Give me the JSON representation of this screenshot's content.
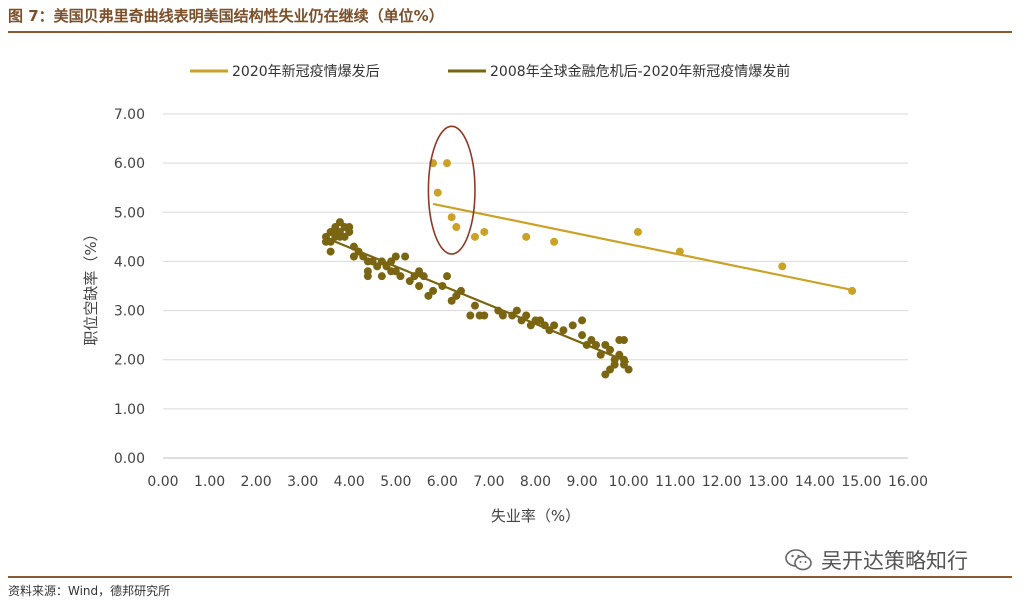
{
  "figure": {
    "title": "图 7：美国贝弗里奇曲线表明美国结构性失业仍在继续（单位%）",
    "source": "资料来源：Wind，德邦研究所",
    "watermark": "吴开达策略知行",
    "watermark_icon": "wechat-icon"
  },
  "chart_data": {
    "type": "scatter",
    "xlabel": "失业率（%）",
    "ylabel": "职位空缺率（%）",
    "xlim": [
      0,
      16
    ],
    "ylim": [
      0,
      7
    ],
    "x_ticks": [
      "0.00",
      "1.00",
      "2.00",
      "3.00",
      "4.00",
      "5.00",
      "6.00",
      "7.00",
      "8.00",
      "9.00",
      "10.00",
      "11.00",
      "12.00",
      "13.00",
      "14.00",
      "15.00",
      "16.00"
    ],
    "y_ticks": [
      "0.00",
      "1.00",
      "2.00",
      "3.00",
      "4.00",
      "5.00",
      "6.00",
      "7.00"
    ],
    "grid": "horizontal",
    "legend_position": "top",
    "annotation": {
      "type": "ellipse",
      "center": [
        6.2,
        5.45
      ],
      "rx": 0.5,
      "ry": 1.3,
      "color": "#8b3a2a"
    },
    "series": [
      {
        "name": "2020年新冠疫情爆发后",
        "color": "#c9a227",
        "points": [
          [
            5.8,
            6.0
          ],
          [
            6.1,
            6.0
          ],
          [
            5.9,
            5.4
          ],
          [
            6.2,
            4.9
          ],
          [
            6.3,
            4.7
          ],
          [
            6.7,
            4.5
          ],
          [
            6.9,
            4.6
          ],
          [
            7.8,
            4.5
          ],
          [
            8.4,
            4.4
          ],
          [
            10.2,
            4.6
          ],
          [
            11.1,
            4.2
          ],
          [
            13.3,
            3.9
          ],
          [
            14.8,
            3.4
          ]
        ],
        "trendline": [
          [
            5.8,
            5.17
          ],
          [
            14.8,
            3.42
          ]
        ]
      },
      {
        "name": "2008年全球金融危机后-2020年新冠疫情爆发前",
        "color": "#7a6512",
        "points": [
          [
            3.5,
            4.5
          ],
          [
            3.5,
            4.4
          ],
          [
            3.6,
            4.6
          ],
          [
            3.6,
            4.4
          ],
          [
            3.6,
            4.2
          ],
          [
            3.7,
            4.7
          ],
          [
            3.7,
            4.5
          ],
          [
            3.7,
            4.6
          ],
          [
            3.8,
            4.8
          ],
          [
            3.8,
            4.6
          ],
          [
            3.8,
            4.5
          ],
          [
            3.9,
            4.7
          ],
          [
            3.9,
            4.5
          ],
          [
            4.0,
            4.6
          ],
          [
            4.0,
            4.7
          ],
          [
            4.1,
            4.3
          ],
          [
            4.1,
            4.1
          ],
          [
            4.2,
            4.2
          ],
          [
            4.3,
            4.1
          ],
          [
            4.4,
            4.0
          ],
          [
            4.4,
            3.8
          ],
          [
            4.4,
            3.7
          ],
          [
            4.5,
            4.0
          ],
          [
            4.6,
            3.9
          ],
          [
            4.7,
            4.0
          ],
          [
            4.7,
            3.7
          ],
          [
            4.8,
            3.9
          ],
          [
            4.9,
            3.8
          ],
          [
            4.9,
            4.0
          ],
          [
            5.0,
            3.8
          ],
          [
            5.0,
            4.1
          ],
          [
            5.1,
            3.7
          ],
          [
            5.2,
            4.1
          ],
          [
            5.3,
            3.6
          ],
          [
            5.4,
            3.7
          ],
          [
            5.5,
            3.8
          ],
          [
            5.5,
            3.5
          ],
          [
            5.6,
            3.7
          ],
          [
            5.7,
            3.3
          ],
          [
            5.8,
            3.4
          ],
          [
            6.0,
            3.5
          ],
          [
            6.1,
            3.7
          ],
          [
            6.2,
            3.2
          ],
          [
            6.3,
            3.3
          ],
          [
            6.4,
            3.4
          ],
          [
            6.6,
            2.9
          ],
          [
            6.7,
            3.1
          ],
          [
            6.8,
            2.9
          ],
          [
            6.9,
            2.9
          ],
          [
            7.2,
            3.0
          ],
          [
            7.3,
            2.9
          ],
          [
            7.5,
            2.9
          ],
          [
            7.6,
            3.0
          ],
          [
            7.7,
            2.8
          ],
          [
            7.8,
            2.9
          ],
          [
            7.9,
            2.7
          ],
          [
            8.0,
            2.8
          ],
          [
            8.1,
            2.8
          ],
          [
            8.2,
            2.7
          ],
          [
            8.3,
            2.6
          ],
          [
            8.4,
            2.7
          ],
          [
            8.6,
            2.6
          ],
          [
            8.8,
            2.7
          ],
          [
            9.0,
            2.8
          ],
          [
            9.0,
            2.5
          ],
          [
            9.1,
            2.3
          ],
          [
            9.2,
            2.4
          ],
          [
            9.3,
            2.3
          ],
          [
            9.4,
            2.1
          ],
          [
            9.5,
            2.3
          ],
          [
            9.5,
            1.7
          ],
          [
            9.6,
            1.8
          ],
          [
            9.6,
            2.2
          ],
          [
            9.7,
            2.0
          ],
          [
            9.8,
            2.1
          ],
          [
            9.8,
            2.4
          ],
          [
            9.9,
            1.9
          ],
          [
            9.9,
            2.4
          ],
          [
            10.0,
            1.8
          ],
          [
            9.9,
            2.0
          ],
          [
            9.7,
            1.9
          ]
        ],
        "trendline": [
          [
            3.5,
            4.48
          ],
          [
            10.0,
            1.95
          ]
        ]
      }
    ]
  }
}
